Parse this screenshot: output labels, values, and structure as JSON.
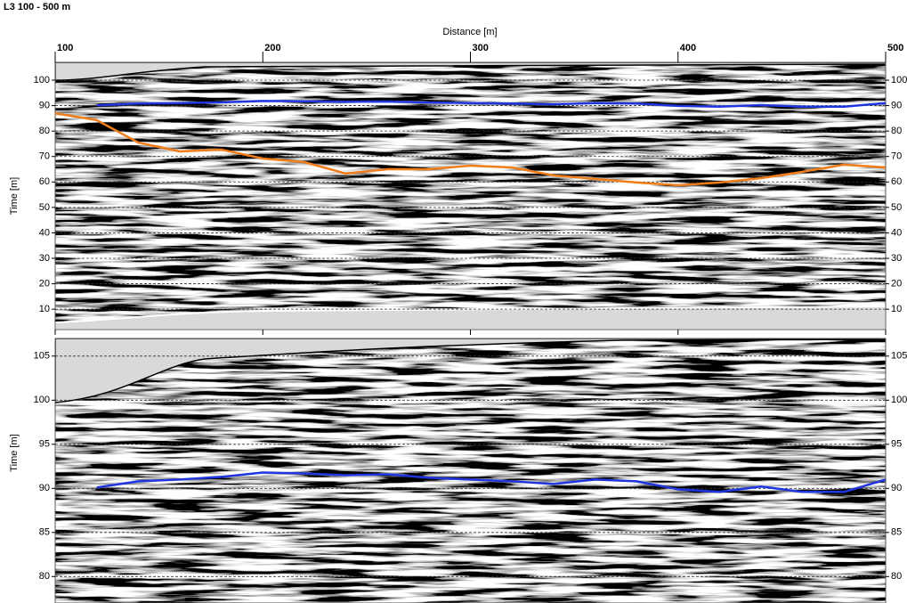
{
  "chart_data": [
    {
      "type": "line",
      "title": "L3 100 - 500 m",
      "xlabel": "Distance [m]",
      "ylabel": "Time [m]",
      "xlim": [
        100,
        500
      ],
      "xticks": [
        100,
        200,
        300,
        400,
        500
      ],
      "ylim": [
        2,
        107
      ],
      "yticks": [
        10,
        20,
        30,
        40,
        50,
        60,
        70,
        80,
        90,
        100
      ],
      "grid": true,
      "x": [
        100,
        120,
        140,
        160,
        180,
        200,
        220,
        240,
        260,
        280,
        300,
        320,
        340,
        360,
        380,
        400,
        420,
        440,
        460,
        480,
        500
      ],
      "series": [
        {
          "color": "#1f35e0",
          "values": [
            null,
            90.1,
            90.8,
            91.0,
            91.3,
            91.8,
            91.7,
            91.5,
            91.6,
            91.2,
            91.0,
            90.8,
            90.5,
            91.0,
            90.8,
            89.9,
            89.6,
            90.2,
            89.6,
            89.6,
            91.0
          ]
        },
        {
          "color": "#f07d1a",
          "values": [
            87.0,
            84.3,
            75.5,
            72.0,
            72.7,
            69.2,
            67.8,
            63.3,
            65.0,
            65.0,
            66.4,
            65.7,
            62.6,
            61.2,
            59.8,
            58.7,
            59.8,
            61.5,
            64.0,
            66.8,
            65.7
          ]
        }
      ]
    },
    {
      "type": "line",
      "ylabel": "Time [m]",
      "xlim": [
        100,
        500
      ],
      "ylim": [
        77,
        107
      ],
      "yticks": [
        80,
        85,
        90,
        95,
        100,
        105
      ],
      "grid": true,
      "x": [
        100,
        120,
        140,
        160,
        180,
        200,
        220,
        240,
        260,
        280,
        300,
        320,
        340,
        360,
        380,
        400,
        420,
        440,
        460,
        480,
        500
      ],
      "series": [
        {
          "color": "#1f35e0",
          "values": [
            null,
            90.1,
            90.8,
            91.0,
            91.3,
            91.8,
            91.7,
            91.5,
            91.6,
            91.2,
            91.0,
            90.8,
            90.5,
            91.0,
            90.8,
            89.9,
            89.6,
            90.2,
            89.6,
            89.6,
            91.0
          ]
        }
      ]
    }
  ]
}
